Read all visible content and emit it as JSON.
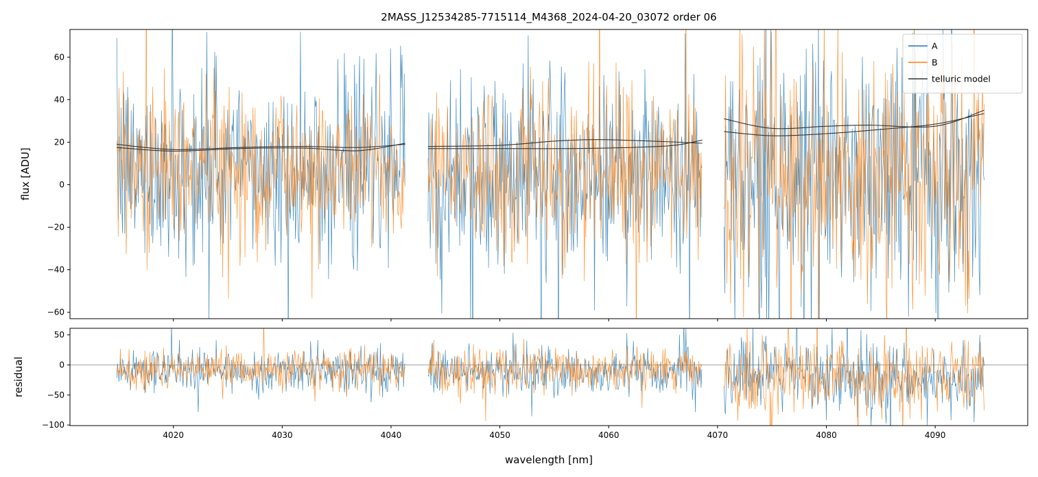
{
  "chart_data": {
    "type": "line",
    "title": "2MASS_J12534285-7715114_M4368_2024-04-20_03072  order 06",
    "xlabel": "wavelength [nm]",
    "xlim": [
      4010.5,
      4098.5
    ],
    "x_ticks": [
      "4020",
      "4030",
      "4040",
      "4050",
      "4060",
      "4070",
      "4080",
      "4090"
    ],
    "x_tick_values": [
      4020,
      4030,
      4040,
      4050,
      4060,
      4070,
      4080,
      4090
    ],
    "segments": [
      {
        "start": 4014.8,
        "end": 4041.3
      },
      {
        "start": 4043.4,
        "end": 4068.6
      },
      {
        "start": 4070.6,
        "end": 4094.5
      }
    ],
    "colors": {
      "A": "#1f77b4",
      "B": "#ff7f0e",
      "telluric": "#333333"
    },
    "panels": [
      {
        "name": "flux",
        "ylabel": "flux [ADU]",
        "ylim": [
          -63,
          73
        ],
        "y_ticks": [
          "60",
          "40",
          "20",
          "0",
          "−20",
          "−40",
          "−60"
        ],
        "y_tick_values": [
          60,
          40,
          20,
          0,
          -20,
          -40,
          -60
        ],
        "legend": {
          "position": "top-right",
          "entries": [
            {
              "label": "A",
              "color": "#1f77b4"
            },
            {
              "label": "B",
              "color": "#ff7f0e"
            },
            {
              "label": "telluric model",
              "color": "#333333"
            }
          ]
        },
        "series": [
          {
            "name": "A",
            "color": "#1f77b4",
            "kind": "noise",
            "segment_stats": [
              {
                "center": 8,
                "spread": 22
              },
              {
                "center": 6,
                "spread": 23
              },
              {
                "center": 4,
                "spread": 30
              }
            ]
          },
          {
            "name": "B",
            "color": "#ff7f0e",
            "kind": "noise",
            "segment_stats": [
              {
                "center": 9,
                "spread": 20
              },
              {
                "center": 7,
                "spread": 21
              },
              {
                "center": 5,
                "spread": 29
              }
            ]
          },
          {
            "name": "telluric model A",
            "color": "#333333",
            "kind": "smooth",
            "points": [
              [
                [
                  4014.8,
                  19
                ],
                [
                  4020,
                  16.5
                ],
                [
                  4026,
                  17.5
                ],
                [
                  4032,
                  18
                ],
                [
                  4037,
                  17.5
                ],
                [
                  4041.3,
                  19
                ]
              ],
              [
                [
                  4043.4,
                  18
                ],
                [
                  4050,
                  18.5
                ],
                [
                  4055,
                  20.5
                ],
                [
                  4059,
                  21.2
                ],
                [
                  4064,
                  20.5
                ],
                [
                  4068.6,
                  19.5
                ]
              ],
              [
                [
                  4070.6,
                  31
                ],
                [
                  4075,
                  26.5
                ],
                [
                  4080,
                  27.5
                ],
                [
                  4084,
                  28
                ],
                [
                  4090,
                  27.5
                ],
                [
                  4094.5,
                  35
                ]
              ]
            ]
          },
          {
            "name": "telluric model B",
            "color": "#333333",
            "kind": "smooth",
            "points": [
              [
                [
                  4014.8,
                  17.5
                ],
                [
                  4020,
                  15.8
                ],
                [
                  4026,
                  17
                ],
                [
                  4032,
                  17.2
                ],
                [
                  4037,
                  16
                ],
                [
                  4041.3,
                  19.5
                ]
              ],
              [
                [
                  4043.4,
                  17
                ],
                [
                  4050,
                  17
                ],
                [
                  4056,
                  17
                ],
                [
                  4062,
                  17.5
                ],
                [
                  4066,
                  18.5
                ],
                [
                  4068.6,
                  21
                ]
              ],
              [
                [
                  4070.6,
                  25
                ],
                [
                  4075,
                  23
                ],
                [
                  4080,
                  24
                ],
                [
                  4085,
                  26
                ],
                [
                  4090,
                  28.5
                ],
                [
                  4094.5,
                  33.5
                ]
              ]
            ]
          }
        ]
      },
      {
        "name": "residual",
        "ylabel": "residual",
        "ylim": [
          -101,
          61
        ],
        "y_ticks": [
          "50",
          "0",
          "−50",
          "−100"
        ],
        "y_tick_values": [
          50,
          0,
          -50,
          -100
        ],
        "zero_line": true,
        "series": [
          {
            "name": "A",
            "color": "#1f77b4",
            "kind": "noise",
            "segment_stats": [
              {
                "center": -10,
                "spread": 18
              },
              {
                "center": -12,
                "spread": 20
              },
              {
                "center": -20,
                "spread": 30
              }
            ]
          },
          {
            "name": "B",
            "color": "#ff7f0e",
            "kind": "noise",
            "segment_stats": [
              {
                "center": -8,
                "spread": 17
              },
              {
                "center": -10,
                "spread": 18
              },
              {
                "center": -18,
                "spread": 29
              }
            ]
          }
        ]
      }
    ]
  }
}
